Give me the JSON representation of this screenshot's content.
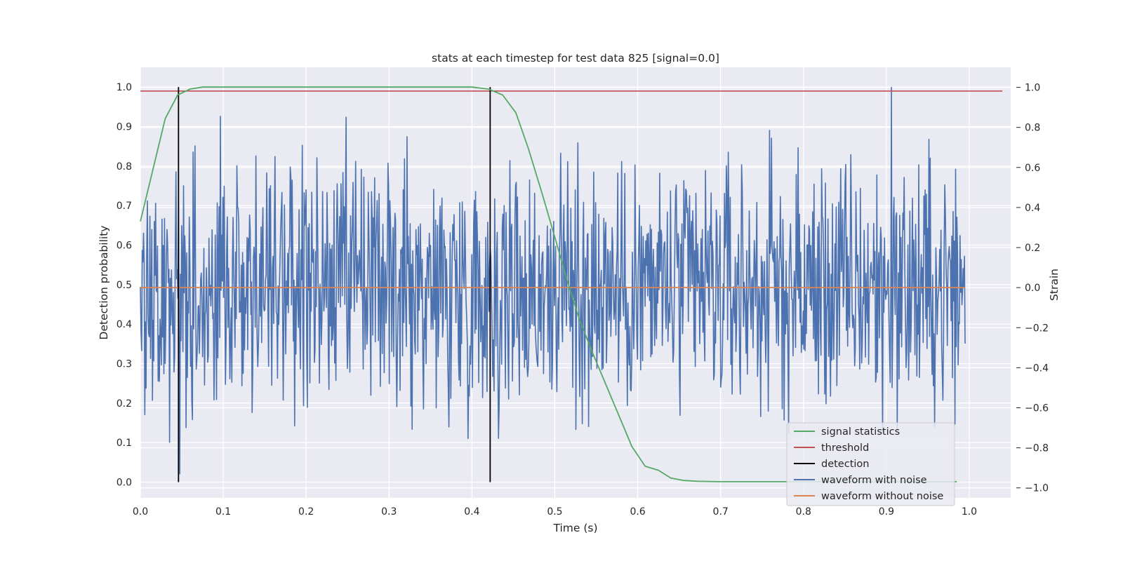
{
  "chart_data": {
    "type": "line",
    "title": "stats at each timestep for test data 825 [signal=0.0]",
    "xlabel": "Time (s)",
    "ylabel": "Detection probability",
    "y2label": "Strain",
    "xlim": [
      0.0,
      1.05
    ],
    "ylim": [
      -0.04,
      1.05
    ],
    "y2lim": [
      -1.05,
      1.1
    ],
    "xticks": [
      "0.0",
      "0.1",
      "0.2",
      "0.3",
      "0.4",
      "0.5",
      "0.6",
      "0.7",
      "0.8",
      "0.9",
      "1.0"
    ],
    "yticks": [
      "0.0",
      "0.1",
      "0.2",
      "0.3",
      "0.4",
      "0.5",
      "0.6",
      "0.7",
      "0.8",
      "0.9",
      "1.0"
    ],
    "y2ticks": [
      "−1.0",
      "−0.8",
      "−0.6",
      "−0.4",
      "−0.2",
      "0.0",
      "0.2",
      "0.4",
      "0.6",
      "0.8",
      "1.0"
    ],
    "grid": true,
    "legend_position": "lower-right",
    "series": [
      {
        "name": "signal statistics",
        "axis": "left",
        "color": "#55a868",
        "x": [
          0.0,
          0.015,
          0.03,
          0.045,
          0.06,
          0.075,
          0.1,
          0.2,
          0.3,
          0.35,
          0.4,
          0.42,
          0.437,
          0.453,
          0.468,
          0.484,
          0.5,
          0.515,
          0.53,
          0.546,
          0.562,
          0.578,
          0.593,
          0.609,
          0.625,
          0.64,
          0.656,
          0.672,
          0.7,
          0.8,
          0.9,
          0.985
        ],
        "values": [
          0.66,
          0.79,
          0.92,
          0.98,
          0.995,
          1.0,
          1.0,
          1.0,
          1.0,
          1.0,
          1.0,
          0.995,
          0.98,
          0.935,
          0.845,
          0.735,
          0.62,
          0.51,
          0.41,
          0.325,
          0.245,
          0.165,
          0.09,
          0.04,
          0.03,
          0.01,
          0.004,
          0.002,
          0.001,
          0.001,
          0.001,
          0.001
        ]
      },
      {
        "name": "threshold",
        "axis": "left",
        "color": "#c44e52",
        "x": [
          0.0,
          1.04
        ],
        "values": [
          0.99,
          0.99
        ]
      },
      {
        "name": "detection",
        "axis": "left",
        "color": "#000000",
        "x": [
          0.046,
          0.422
        ],
        "values": [
          1.0,
          1.0
        ]
      },
      {
        "name": "waveform with noise",
        "axis": "right",
        "color": "#4c72b0",
        "x_range": [
          0.0,
          0.995
        ],
        "y_range": [
          -0.93,
          1.0
        ]
      },
      {
        "name": "waveform without noise",
        "axis": "right",
        "color": "#dd8452",
        "x": [
          0.0,
          0.995
        ],
        "values": [
          0.0,
          0.0
        ]
      }
    ]
  }
}
